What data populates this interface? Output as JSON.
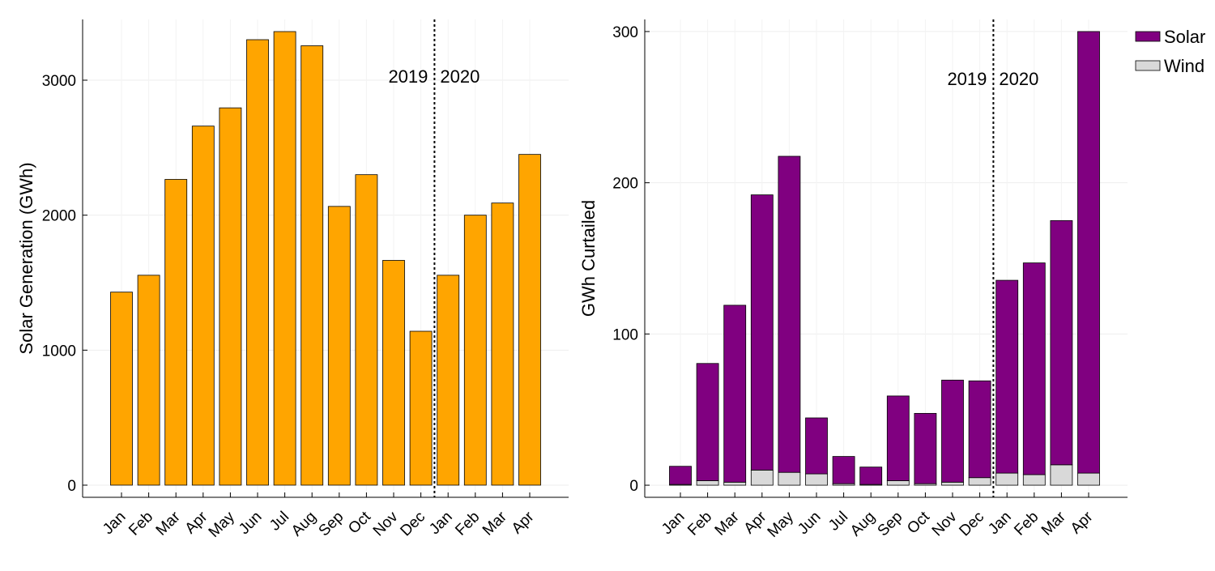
{
  "chart_data": [
    {
      "type": "bar",
      "title": "",
      "xlabel": "",
      "ylabel": "Solar Generation (GWh)",
      "categories": [
        "Jan",
        "Feb",
        "Mar",
        "Apr",
        "May",
        "Jun",
        "Jul",
        "Aug",
        "Sep",
        "Oct",
        "Nov",
        "Dec",
        "Jan",
        "Feb",
        "Mar",
        "Apr"
      ],
      "series": [
        {
          "values": [
            1430,
            1555,
            2265,
            2660,
            2795,
            3300,
            3360,
            3255,
            2065,
            2300,
            1665,
            1140,
            1555,
            2000,
            2090,
            2450
          ],
          "color": "#FFA500"
        }
      ],
      "ylim": [
        -90,
        3450
      ],
      "yticks": [
        0,
        1000,
        2000,
        3000
      ],
      "grid": true,
      "annotations": [
        {
          "text": "2019",
          "side": "left"
        },
        {
          "text": "2020",
          "side": "right"
        }
      ],
      "divider_after_index": 11,
      "legend": null
    },
    {
      "type": "bar",
      "stacked": true,
      "title": "",
      "xlabel": "",
      "ylabel": "GWh Curtailed",
      "categories": [
        "Jan",
        "Feb",
        "Mar",
        "Apr",
        "May",
        "Jun",
        "Jul",
        "Aug",
        "Sep",
        "Oct",
        "Nov",
        "Dec",
        "Jan",
        "Feb",
        "Mar",
        "Apr"
      ],
      "series": [
        {
          "name": "Wind",
          "values": [
            0.5,
            3,
            2,
            10,
            8.5,
            7.5,
            1,
            0.5,
            3,
            1,
            2,
            5,
            8,
            7,
            13.5,
            8
          ],
          "color": "#D9D9D9"
        },
        {
          "name": "Solar",
          "values": [
            12,
            77.5,
            117,
            182,
            209,
            37,
            18,
            11.5,
            56,
            46.5,
            67.5,
            64,
            127.5,
            140,
            161.5,
            292
          ],
          "color": "#800080"
        }
      ],
      "ylim": [
        -8,
        308
      ],
      "yticks": [
        0,
        100,
        200,
        300
      ],
      "grid": true,
      "annotations": [
        {
          "text": "2019",
          "side": "left"
        },
        {
          "text": "2020",
          "side": "right"
        }
      ],
      "divider_after_index": 11,
      "legend": {
        "placement": "top-right",
        "entries": [
          {
            "label": "Solar",
            "color": "#800080"
          },
          {
            "label": "Wind",
            "color": "#D9D9D9"
          }
        ]
      }
    }
  ]
}
